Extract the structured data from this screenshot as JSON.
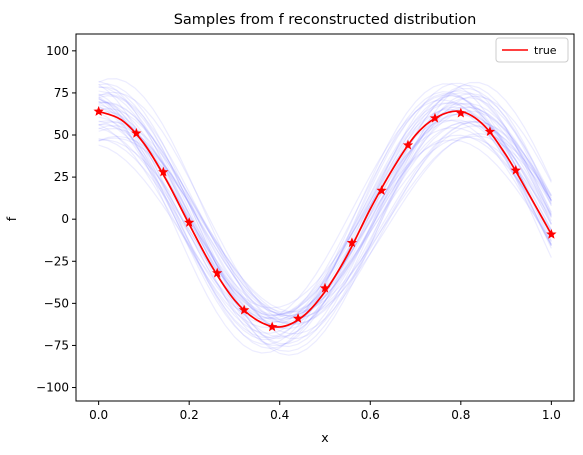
{
  "chart_data": {
    "type": "line",
    "title": "Samples from f reconstructed distribution",
    "xlabel": "x",
    "ylabel": "f",
    "xlim": [
      -0.05,
      1.05
    ],
    "ylim": [
      -108,
      110
    ],
    "xticks": [
      0.0,
      0.2,
      0.4,
      0.6,
      0.8,
      1.0
    ],
    "xtick_labels": [
      "0.0",
      "0.2",
      "0.4",
      "0.6",
      "0.8",
      "1.0"
    ],
    "yticks": [
      -100,
      -75,
      -50,
      -25,
      0,
      25,
      50,
      75,
      100
    ],
    "ytick_labels": [
      "−100",
      "−75",
      "−50",
      "−25",
      "0",
      "25",
      "50",
      "75",
      "100"
    ],
    "grid": false,
    "legend_position": "top-right",
    "series": [
      {
        "name": "true",
        "color": "#ff0000",
        "kind": "line",
        "x": [
          0.0,
          0.05,
          0.1,
          0.15,
          0.2,
          0.25,
          0.3,
          0.35,
          0.4,
          0.45,
          0.5,
          0.55,
          0.6,
          0.65,
          0.7,
          0.75,
          0.8,
          0.85,
          0.9,
          0.95,
          1.0
        ],
        "y": [
          64,
          59,
          45,
          23,
          -3,
          -28,
          -48,
          -60,
          -64,
          -58,
          -43,
          -21,
          6,
          30,
          50,
          61,
          64,
          56,
          38,
          15,
          -9
        ]
      },
      {
        "kind": "markers",
        "color": "#ff0000",
        "marker": "star",
        "x": [
          0.0,
          0.0833,
          0.1429,
          0.2,
          0.2619,
          0.3214,
          0.3833,
          0.4405,
          0.5,
          0.5595,
          0.625,
          0.6833,
          0.7429,
          0.8,
          0.8643,
          0.9214,
          1.0
        ],
        "y": [
          64,
          51,
          28,
          -2,
          -32,
          -54,
          -64,
          -59,
          -41,
          -14,
          17,
          44,
          60,
          63,
          52,
          29,
          -9
        ]
      },
      {
        "kind": "samples",
        "color": "#6b6bff",
        "count": 40,
        "x_step": 0.02,
        "amplitude_range": [
          52,
          80
        ],
        "phase_range": [
          -0.04,
          0.04
        ],
        "offset_range": [
          -9,
          9
        ]
      }
    ]
  }
}
